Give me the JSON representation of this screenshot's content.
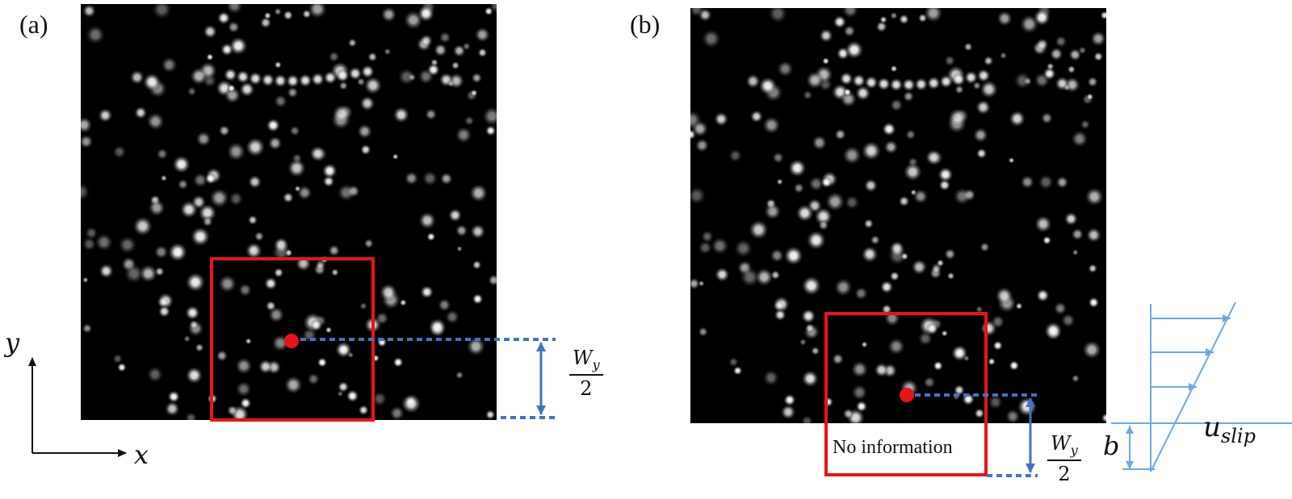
{
  "panels": [
    {
      "label": "(a)"
    },
    {
      "label": "(b)"
    }
  ],
  "axes": {
    "x_label": "x",
    "y_label": "y"
  },
  "annotations": {
    "half_window": {
      "numerator_base": "W",
      "numerator_sub": "y",
      "denominator": "2"
    },
    "no_information": "No information",
    "slip_length": "b",
    "slip_velocity": {
      "base": "u",
      "sub": "slip"
    }
  },
  "colors": {
    "image_background": "#000000",
    "window_box": "#e8141a",
    "window_center": "#e8141a",
    "dimension_lines": "#4472c4",
    "velocity_profile": "#6fa7e0"
  },
  "icons": [
    "particle-image",
    "window-box",
    "window-center-dot",
    "dimension-arrow",
    "velocity-profile"
  ]
}
